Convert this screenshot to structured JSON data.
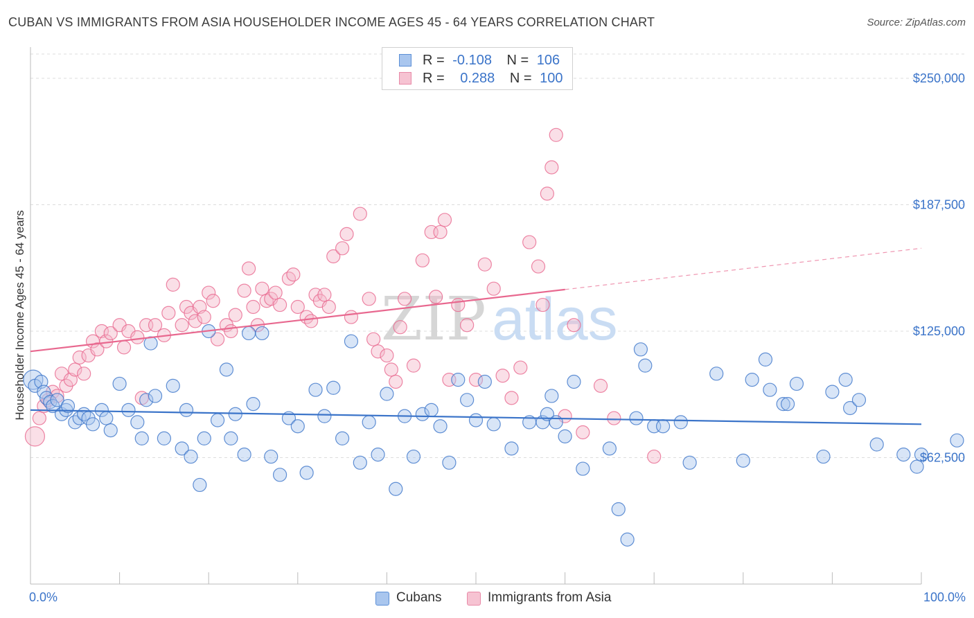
{
  "title": "CUBAN VS IMMIGRANTS FROM ASIA HOUSEHOLDER INCOME AGES 45 - 64 YEARS CORRELATION CHART",
  "source": "Source: ZipAtlas.com",
  "watermark": {
    "zip": "ZIP",
    "atlas": "atlas"
  },
  "legend_top": [
    {
      "r_label": "R =",
      "r_value": "-0.108",
      "n_label": "N =",
      "n_value": "106"
    },
    {
      "r_label": "R =",
      "r_value": "0.288",
      "n_label": "N =",
      "n_value": "100"
    }
  ],
  "legend_bottom": [
    "Cubans",
    "Immigrants from Asia"
  ],
  "chart_data": {
    "type": "scatter",
    "title": "CUBAN VS IMMIGRANTS FROM ASIA HOUSEHOLDER INCOME AGES 45 - 64 YEARS CORRELATION CHART",
    "xlabel": "",
    "ylabel": "Householder Income Ages 45 - 64 years",
    "xlim": [
      0,
      100
    ],
    "ylim": [
      0,
      262000
    ],
    "x_tick_labels": [
      "0.0%",
      "100.0%"
    ],
    "y_ticks": [
      62500,
      125000,
      187500,
      250000
    ],
    "y_tick_labels": [
      "$62,500",
      "$125,000",
      "$187,500",
      "$250,000"
    ],
    "grid": "horizontal dashed",
    "colors": {
      "cubans": "#3b74c9",
      "asia": "#e8688f",
      "cubans_fill": "#a9c6ee",
      "asia_fill": "#f4b7c9"
    },
    "series": [
      {
        "name": "Cubans",
        "r": -0.108,
        "n": 106,
        "trend": {
          "x": [
            0,
            100
          ],
          "y": [
            86000,
            79000
          ],
          "dashed_from": null
        },
        "points": [
          [
            0.3,
            101000
          ],
          [
            0.5,
            98000
          ],
          [
            1.2,
            100000
          ],
          [
            1.5,
            95000
          ],
          [
            1.8,
            92000
          ],
          [
            2.2,
            90000
          ],
          [
            2.5,
            88000
          ],
          [
            3.0,
            91000
          ],
          [
            3.5,
            84000
          ],
          [
            4.0,
            86000
          ],
          [
            4.2,
            88000
          ],
          [
            5.0,
            80000
          ],
          [
            5.5,
            82000
          ],
          [
            6.0,
            84000
          ],
          [
            6.5,
            82000
          ],
          [
            7.0,
            79000
          ],
          [
            8.0,
            86000
          ],
          [
            8.5,
            82000
          ],
          [
            9.0,
            76000
          ],
          [
            10.0,
            99000
          ],
          [
            11.0,
            86000
          ],
          [
            12.0,
            80000
          ],
          [
            12.5,
            72000
          ],
          [
            13.0,
            91000
          ],
          [
            13.5,
            119000
          ],
          [
            14.0,
            93000
          ],
          [
            15.0,
            72000
          ],
          [
            16.0,
            98000
          ],
          [
            17.0,
            67000
          ],
          [
            17.5,
            86000
          ],
          [
            18.0,
            63000
          ],
          [
            19.0,
            49000
          ],
          [
            19.5,
            72000
          ],
          [
            20.0,
            125000
          ],
          [
            21.0,
            81000
          ],
          [
            22.0,
            106000
          ],
          [
            22.5,
            72000
          ],
          [
            23.0,
            84000
          ],
          [
            24.0,
            64000
          ],
          [
            24.5,
            124000
          ],
          [
            25.0,
            89000
          ],
          [
            26.0,
            124000
          ],
          [
            27.0,
            63000
          ],
          [
            28.0,
            54000
          ],
          [
            29.0,
            82000
          ],
          [
            30.0,
            78000
          ],
          [
            31.0,
            55000
          ],
          [
            32.0,
            96000
          ],
          [
            33.0,
            83000
          ],
          [
            34.0,
            97000
          ],
          [
            35.0,
            72000
          ],
          [
            36.0,
            120000
          ],
          [
            37.0,
            60000
          ],
          [
            38.0,
            80000
          ],
          [
            39.0,
            64000
          ],
          [
            40.0,
            94000
          ],
          [
            41.0,
            47000
          ],
          [
            42.0,
            83000
          ],
          [
            43.0,
            63000
          ],
          [
            44.0,
            84000
          ],
          [
            45.0,
            86000
          ],
          [
            46.0,
            78000
          ],
          [
            47.0,
            60000
          ],
          [
            48.0,
            101000
          ],
          [
            49.0,
            91000
          ],
          [
            50.0,
            81000
          ],
          [
            51.0,
            100000
          ],
          [
            52.0,
            79000
          ],
          [
            54.0,
            67000
          ],
          [
            56.0,
            80000
          ],
          [
            57.5,
            80000
          ],
          [
            58.0,
            84000
          ],
          [
            58.5,
            93000
          ],
          [
            59.0,
            80000
          ],
          [
            60.0,
            73000
          ],
          [
            61.0,
            100000
          ],
          [
            62.0,
            57000
          ],
          [
            65.0,
            67000
          ],
          [
            66.0,
            37000
          ],
          [
            67.0,
            22000
          ],
          [
            68.0,
            82000
          ],
          [
            68.5,
            116000
          ],
          [
            69.0,
            108000
          ],
          [
            70.0,
            78000
          ],
          [
            71.0,
            78000
          ],
          [
            73.0,
            80000
          ],
          [
            74.0,
            60000
          ],
          [
            77.0,
            104000
          ],
          [
            80.0,
            61000
          ],
          [
            81.0,
            101000
          ],
          [
            82.5,
            111000
          ],
          [
            83.0,
            96000
          ],
          [
            84.5,
            89000
          ],
          [
            85.0,
            89000
          ],
          [
            86.0,
            99000
          ],
          [
            89.0,
            63000
          ],
          [
            90.0,
            95000
          ],
          [
            91.5,
            101000
          ],
          [
            92.0,
            87000
          ],
          [
            93.0,
            91000
          ],
          [
            95.0,
            69000
          ],
          [
            98.0,
            64000
          ],
          [
            99.5,
            58000
          ],
          [
            100.0,
            64000
          ],
          [
            104.0,
            71000
          ]
        ]
      },
      {
        "name": "Immigrants from Asia",
        "r": 0.288,
        "n": 100,
        "trend": {
          "x": [
            0,
            100
          ],
          "y": [
            115000,
            166000
          ],
          "dashed_from": 60
        },
        "points": [
          [
            0.5,
            73000
          ],
          [
            1.0,
            82000
          ],
          [
            1.5,
            88000
          ],
          [
            2.0,
            91000
          ],
          [
            2.5,
            95000
          ],
          [
            3.0,
            93000
          ],
          [
            3.5,
            104000
          ],
          [
            4.0,
            98000
          ],
          [
            4.5,
            101000
          ],
          [
            5.0,
            106000
          ],
          [
            5.5,
            112000
          ],
          [
            6.0,
            104000
          ],
          [
            6.5,
            113000
          ],
          [
            7.0,
            120000
          ],
          [
            7.5,
            116000
          ],
          [
            8.0,
            125000
          ],
          [
            8.5,
            120000
          ],
          [
            9.0,
            124000
          ],
          [
            10.0,
            128000
          ],
          [
            10.5,
            117000
          ],
          [
            11.0,
            125000
          ],
          [
            12.0,
            122000
          ],
          [
            12.5,
            92000
          ],
          [
            13.0,
            128000
          ],
          [
            14.0,
            128000
          ],
          [
            15.0,
            123000
          ],
          [
            15.5,
            134000
          ],
          [
            16.0,
            148000
          ],
          [
            17.0,
            128000
          ],
          [
            17.5,
            137000
          ],
          [
            18.0,
            134000
          ],
          [
            18.5,
            130000
          ],
          [
            19.0,
            137000
          ],
          [
            19.5,
            132000
          ],
          [
            20.0,
            144000
          ],
          [
            20.5,
            140000
          ],
          [
            21.0,
            121000
          ],
          [
            22.0,
            128000
          ],
          [
            22.5,
            125000
          ],
          [
            23.0,
            133000
          ],
          [
            24.0,
            145000
          ],
          [
            24.5,
            156000
          ],
          [
            25.0,
            137000
          ],
          [
            25.5,
            128000
          ],
          [
            26.0,
            146000
          ],
          [
            26.5,
            140000
          ],
          [
            27.0,
            141000
          ],
          [
            27.5,
            144000
          ],
          [
            28.0,
            138000
          ],
          [
            29.0,
            151000
          ],
          [
            29.5,
            153000
          ],
          [
            30.0,
            137000
          ],
          [
            31.0,
            132000
          ],
          [
            31.5,
            130000
          ],
          [
            32.0,
            143000
          ],
          [
            32.5,
            140000
          ],
          [
            33.0,
            143000
          ],
          [
            33.5,
            137000
          ],
          [
            34.0,
            162000
          ],
          [
            35.0,
            166000
          ],
          [
            35.5,
            173000
          ],
          [
            36.0,
            132000
          ],
          [
            37.0,
            183000
          ],
          [
            38.0,
            141000
          ],
          [
            38.5,
            121000
          ],
          [
            39.0,
            115000
          ],
          [
            40.0,
            113000
          ],
          [
            40.5,
            106000
          ],
          [
            41.0,
            100000
          ],
          [
            41.5,
            127000
          ],
          [
            42.0,
            141000
          ],
          [
            43.0,
            108000
          ],
          [
            44.0,
            160000
          ],
          [
            45.0,
            174000
          ],
          [
            45.5,
            142000
          ],
          [
            46.0,
            174000
          ],
          [
            46.5,
            180000
          ],
          [
            47.0,
            101000
          ],
          [
            48.0,
            138000
          ],
          [
            49.0,
            128000
          ],
          [
            50.0,
            101000
          ],
          [
            51.0,
            158000
          ],
          [
            52.0,
            146000
          ],
          [
            53.0,
            103000
          ],
          [
            54.0,
            92000
          ],
          [
            55.0,
            107000
          ],
          [
            56.0,
            169000
          ],
          [
            57.0,
            157000
          ],
          [
            57.5,
            138000
          ],
          [
            58.0,
            193000
          ],
          [
            58.5,
            206000
          ],
          [
            59.0,
            222000
          ],
          [
            60.0,
            83000
          ],
          [
            61.0,
            128000
          ],
          [
            62.0,
            75000
          ],
          [
            64.0,
            98000
          ],
          [
            65.5,
            82000
          ],
          [
            70.0,
            63000
          ]
        ]
      }
    ]
  }
}
